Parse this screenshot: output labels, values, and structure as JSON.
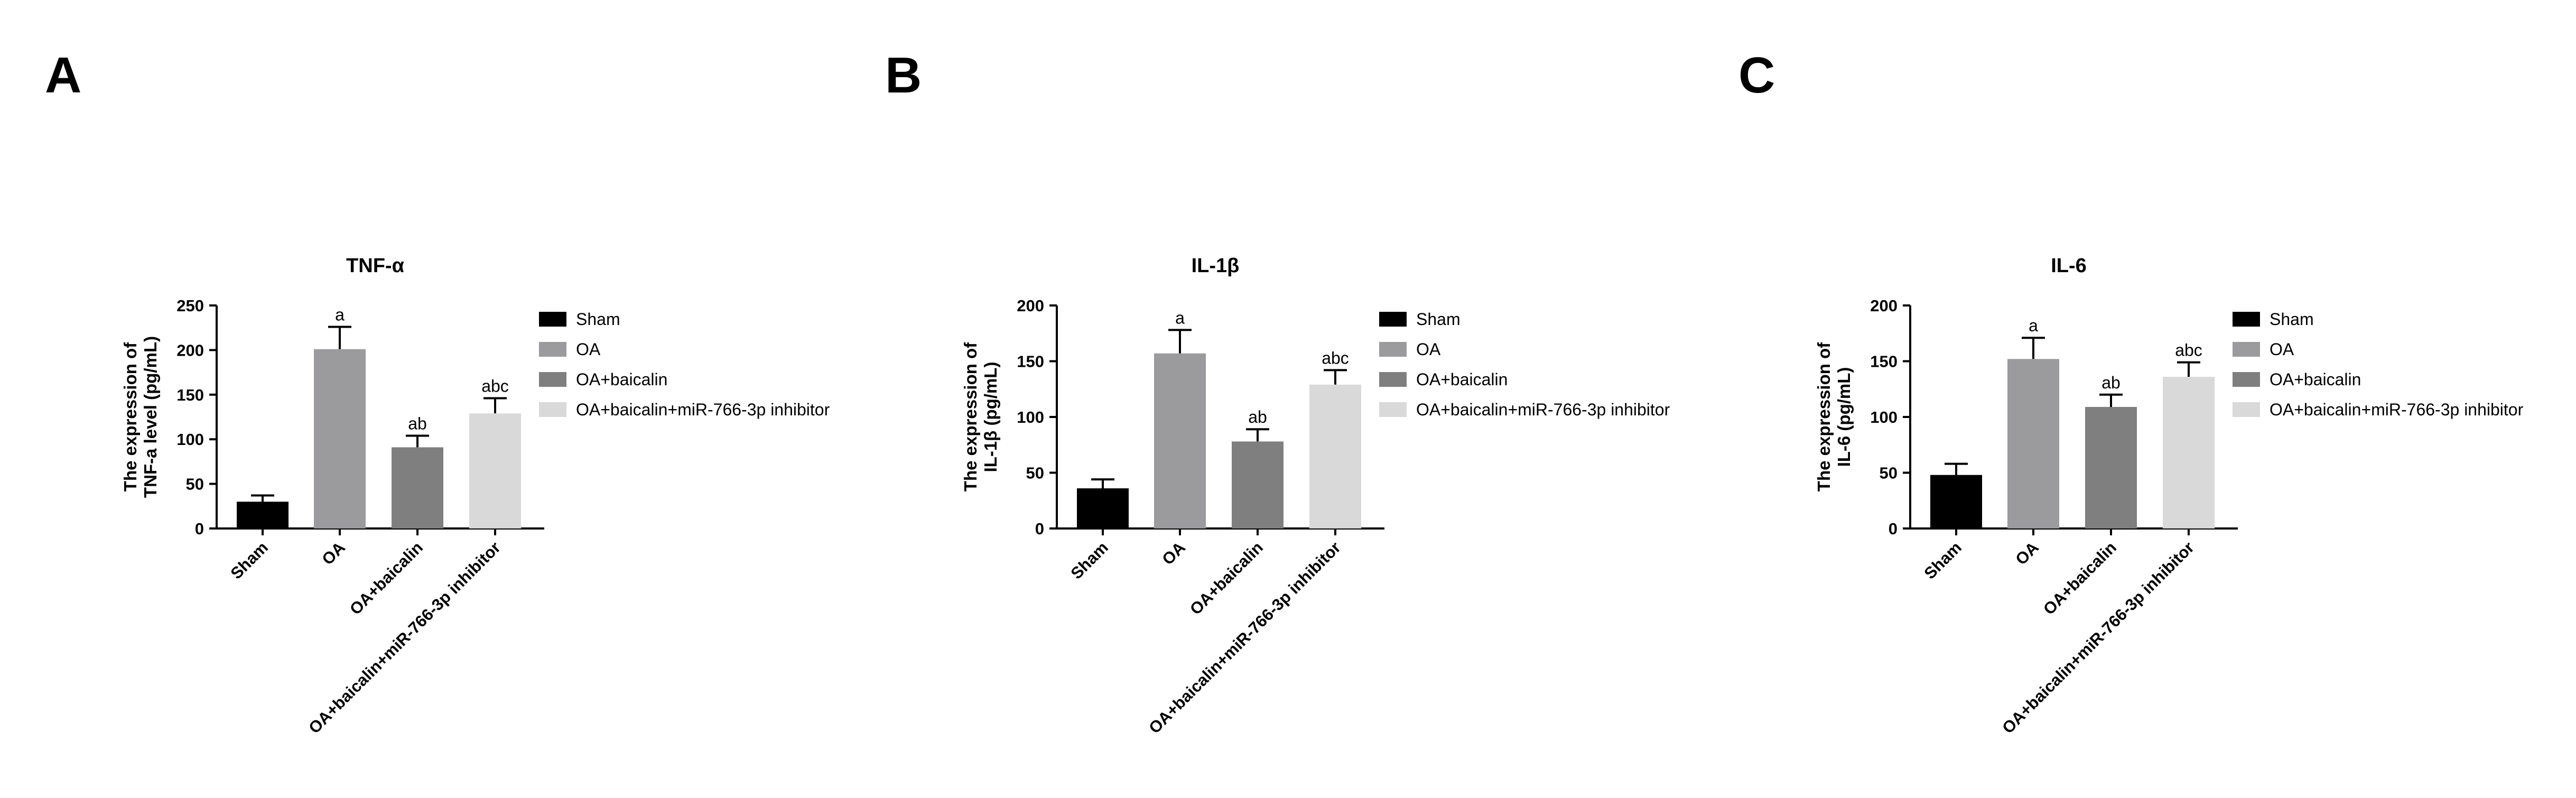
{
  "panels": [
    {
      "letter": "A"
    },
    {
      "letter": "B"
    },
    {
      "letter": "C"
    }
  ],
  "colors": {
    "Sham": "#000000",
    "OA": "#9b9b9e",
    "OA+baicalin": "#7f7f7f",
    "OA+baicalin+miR-766-3p inhibitor": "#d9d9d9"
  },
  "chart_data": [
    {
      "type": "bar",
      "title": "TNF-α",
      "ylabel_line1": "The expression of",
      "ylabel_line2": "TNF-a level (pg/mL)",
      "categories": [
        "Sham",
        "OA",
        "OA+baicalin",
        "OA+baicalin+miR-766-3p inhibitor"
      ],
      "values": [
        30,
        201,
        91,
        129
      ],
      "errors": [
        7,
        25,
        13,
        17
      ],
      "annotations": [
        "",
        "a",
        "ab",
        "abc"
      ],
      "ylim": [
        0,
        250
      ],
      "yticks": [
        0,
        50,
        100,
        150,
        200,
        250
      ],
      "legend": [
        "Sham",
        "OA",
        "OA+baicalin",
        "OA+baicalin+miR-766-3p inhibitor"
      ],
      "legend_position": "right"
    },
    {
      "type": "bar",
      "title": "IL-1β",
      "ylabel_line1": "The expression of",
      "ylabel_line2": "IL-1β (pg/mL)",
      "categories": [
        "Sham",
        "OA",
        "OA+baicalin",
        "OA+baicalin+miR-766-3p inhibitor"
      ],
      "values": [
        36,
        157,
        78,
        129
      ],
      "errors": [
        8,
        21,
        11,
        13
      ],
      "annotations": [
        "",
        "a",
        "ab",
        "abc"
      ],
      "ylim": [
        0,
        200
      ],
      "yticks": [
        0,
        50,
        100,
        150,
        200
      ],
      "legend": [
        "Sham",
        "OA",
        "OA+baicalin",
        "OA+baicalin+miR-766-3p inhibitor"
      ],
      "legend_position": "right"
    },
    {
      "type": "bar",
      "title": "IL-6",
      "ylabel_line1": "The expression of",
      "ylabel_line2": "IL-6 (pg/mL)",
      "categories": [
        "Sham",
        "OA",
        "OA+baicalin",
        "OA+baicalin+miR-766-3p inhibitor"
      ],
      "values": [
        48,
        152,
        109,
        136
      ],
      "errors": [
        10,
        19,
        11,
        13
      ],
      "annotations": [
        "",
        "a",
        "ab",
        "abc"
      ],
      "ylim": [
        0,
        200
      ],
      "yticks": [
        0,
        50,
        100,
        150,
        200
      ],
      "legend": [
        "Sham",
        "OA",
        "OA+baicalin",
        "OA+baicalin+miR-766-3p inhibitor"
      ],
      "legend_position": "right"
    }
  ]
}
